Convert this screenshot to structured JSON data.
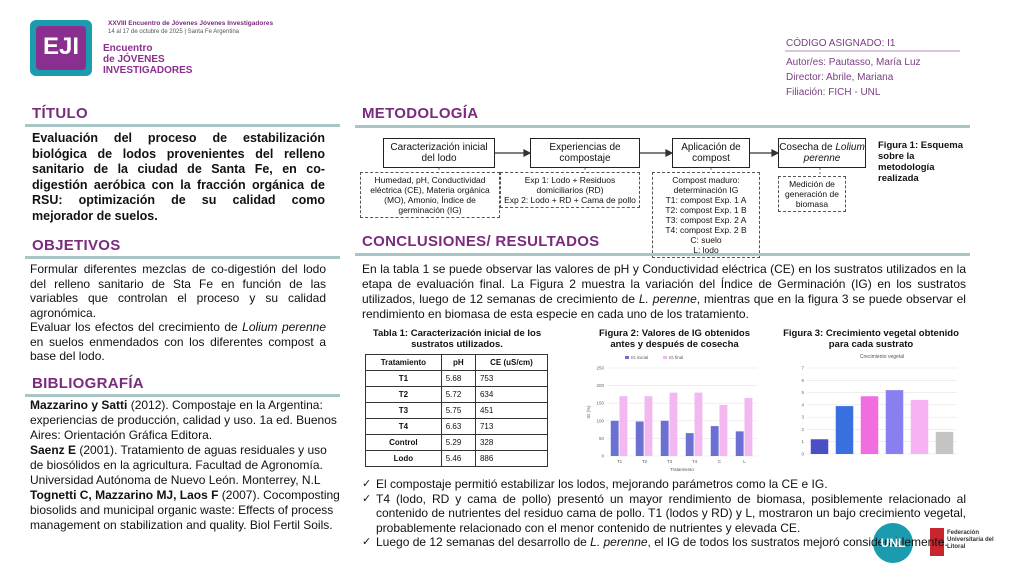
{
  "header": {
    "event_line1": "XXVIII Encuentro de Jóvenes Jóvenes Investigadores",
    "event_line2": "14 al 17 de octubre de 2025 | Santa Fe Argentina",
    "logo": "EJI",
    "brand": [
      "Encuentro",
      "de JÓVENES",
      "INVESTIGADORES"
    ]
  },
  "info": {
    "code": "CÓDIGO ASIGNADO: I1",
    "authors": "Autor/es: Pautasso, María Luz",
    "director": "Director: Abrile, Mariana",
    "affiliation": "Filiación: FICH - UNL"
  },
  "title_section": {
    "heading": "TÍTULO",
    "text": "Evaluación del proceso de estabilización biológica de lodos provenientes del relleno sanitario de la ciudad de Santa Fe, en co-digestión aeróbica con la fracción orgánica de RSU: optimización de su calidad como mejorador de suelos."
  },
  "objectives": {
    "heading": "OBJETIVOS",
    "paragraphs": [
      [
        "Formular diferentes mezclas de co-digestión del lodo del relleno sanitario de Sta Fe en función de las variables que controlan el proceso y su calidad agronómica."
      ],
      [
        "Evaluar los efectos del crecimiento de ",
        "Lolium perenne",
        " en suelos enmendados con los diferentes compost a base del lodo."
      ]
    ]
  },
  "bibliography": {
    "heading": "BIBLIOGRAFÍA",
    "entries": [
      [
        "Mazzarino y Satti",
        " (2012). Compostaje en la Argentina: experiencias de producción, calidad y uso. 1a ed. Buenos Aires: Orientación Gráfica Editora."
      ],
      [
        "Saenz E",
        " (2001). Tratamiento de aguas residuales y uso de biosólidos en la agricultura. Facultad de Agronomía. Universidad Autónoma de Nuevo León. Monterrey, N.L"
      ],
      [
        "Tognetti C, Mazzarino MJ, Laos F",
        " (2007). Cocomposting biosolids and municipal organic waste: Effects of process management on stabilization and quality. Biol Fertil Soils."
      ]
    ]
  },
  "methodology": {
    "heading": "METODOLOGÍA",
    "steps": [
      {
        "label": [
          "Caracterización inicial del lodo"
        ],
        "detail": [
          "Humedad, pH, Conductividad eléctrica (CE), Materia orgánica (MO), Amonio, Índice de germinación (IG)"
        ]
      },
      {
        "label": [
          "Experiencias de compostaje"
        ],
        "detail": [
          "Exp 1: Lodo + Residuos domiciliarios (RD)",
          "Exp 2: Lodo + RD + Cama de pollo"
        ]
      },
      {
        "label": [
          "Aplicación de compost"
        ],
        "detail": [
          "Compost maduro: determinación IG",
          "T1: compost Exp. 1 A",
          "T2: compost Exp. 1 B",
          "T3: compost Exp. 2 A",
          "T4: compost Exp. 2 B",
          "C: suelo",
          "L: lodo"
        ]
      },
      {
        "label": [
          "Cosecha de ",
          "Lolium perenne"
        ],
        "detail": [
          "Medición de generación de biomasa"
        ]
      }
    ],
    "caption": "Figura 1: Esquema sobre la metodología realizada"
  },
  "conclusions": {
    "heading": "CONCLUSIONES/ RESULTADOS",
    "intro": [
      "En la tabla 1 se puede observar las valores de pH y Conductividad eléctrica (CE) en los sustratos utilizados en la etapa de evaluación final. La Figura 2 muestra la variación del Índice de Germinación (IG) en los sustratos utilizados, luego de 12 semanas de crecimiento de ",
      "L. perenne",
      ", mientras que en la figura 3 se puede observar el rendimiento en biomasa de esta especie en cada uno de los tratamiento."
    ],
    "bullets": [
      [
        "El compostaje permitió estabilizar los lodos, mejorando parámetros como la CE e IG."
      ],
      [
        "T4 (lodo, RD y cama de pollo) presentó un mayor rendimiento de biomasa, posiblemente relacionado al contenido de nutrientes del residuo cama de pollo. T1 (lodos y RD) y L, mostraron un bajo crecimiento vegetal, probablemente relacionado con el menor contenido de nutrientes y elevada CE."
      ],
      [
        "Luego de 12 semanas del desarrollo de ",
        "L. perenne",
        ", el IG de todos los sustratos mejoró considerablemente."
      ]
    ]
  },
  "table": {
    "title": "Tabla 1: Caracterización inicial de los sustratos utilizados.",
    "headers": [
      "Tratamiento",
      "pH",
      "CE (uS/cm)"
    ],
    "rows": [
      [
        "T1",
        5.68,
        753
      ],
      [
        "T2",
        5.72,
        634
      ],
      [
        "T3",
        5.75,
        451
      ],
      [
        "T4",
        6.63,
        713
      ],
      [
        "Control",
        5.29,
        328
      ],
      [
        "Lodo",
        5.46,
        886
      ]
    ]
  },
  "chart_data": [
    {
      "type": "bar",
      "title": "Figura 2: Valores de IG obtenidos antes y después de cosecha",
      "categories": [
        "T1",
        "T2",
        "T3",
        "T4",
        "C",
        "L"
      ],
      "series": [
        {
          "name": "IG inicial",
          "color": "#6b70d2",
          "values": [
            100,
            98,
            100,
            65,
            85,
            70
          ]
        },
        {
          "name": "IG final",
          "color": "#f2b8ef",
          "values": [
            170,
            170,
            180,
            180,
            145,
            165
          ]
        }
      ],
      "ylim": [
        0,
        250
      ],
      "yticks": [
        0,
        50,
        100,
        150,
        200,
        250
      ],
      "ylabel": "IG (%)",
      "xlabel": "Tratamiento",
      "grid": true
    },
    {
      "type": "bar",
      "title": "Figura 3: Crecimiento vegetal obtenido para cada sustrato",
      "subtitle": "Crecimiento vegetal",
      "categories": [
        null,
        null,
        null,
        null,
        null,
        null
      ],
      "values": [
        1.2,
        3.9,
        4.7,
        5.2,
        4.4,
        1.8
      ],
      "colors": [
        "#4a4fc4",
        "#3a6fe0",
        "#f06ee0",
        "#8a7ff0",
        "#f6b2f2",
        "#c4c4c4"
      ],
      "ylim": [
        0,
        7
      ],
      "yticks": [
        0,
        1,
        2,
        3,
        4,
        5,
        6,
        7
      ],
      "grid": true
    }
  ],
  "footer": {
    "logo_unl": "UNL",
    "logo_ful": "Federación Universitaria del Litoral"
  }
}
